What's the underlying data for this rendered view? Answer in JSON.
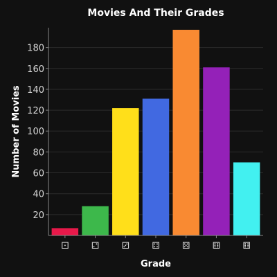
{
  "chart_data": {
    "type": "bar",
    "title": "Movies And Their Grades",
    "xlabel": "Grade",
    "ylabel": "Number of Movies",
    "categories": [
      "⚀",
      "⚁",
      "⚂",
      "⚃",
      "⚄",
      "⚅",
      "⚅"
    ],
    "values": [
      7,
      28,
      122,
      131,
      197,
      161,
      70
    ],
    "colors": [
      "#e8194a",
      "#3db84b",
      "#ffdf1a",
      "#4169e1",
      "#f98a32",
      "#9421b8",
      "#42f0f0"
    ],
    "ylim": [
      0,
      199
    ],
    "yticks": [
      20,
      40,
      60,
      80,
      100,
      120,
      140,
      160,
      180
    ],
    "grid": true,
    "legend": "none"
  }
}
